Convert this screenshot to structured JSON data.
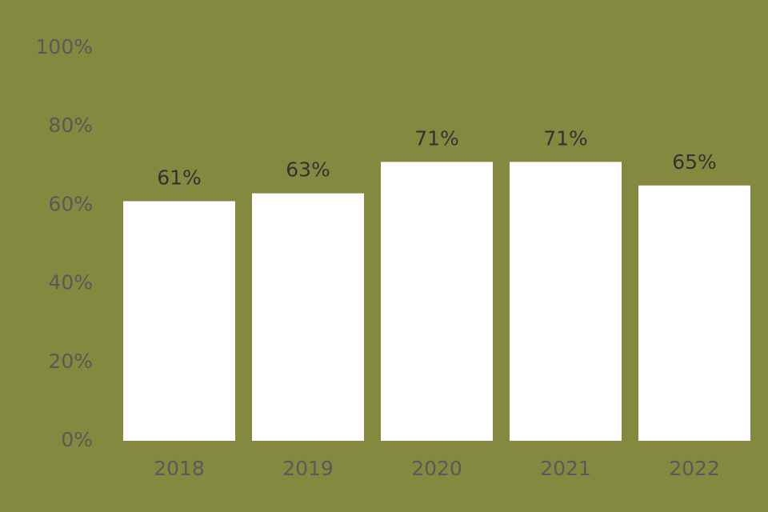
{
  "chart_data": {
    "type": "bar",
    "categories": [
      "2018",
      "2019",
      "2020",
      "2021",
      "2022"
    ],
    "values": [
      61,
      63,
      71,
      71,
      65
    ],
    "value_labels": [
      "61%",
      "63%",
      "71%",
      "71%",
      "65%"
    ],
    "color": "#ffffff",
    "ylim": [
      0,
      100
    ],
    "yticks": [
      {
        "value": 0,
        "label": "0%"
      },
      {
        "value": 20,
        "label": "20%"
      },
      {
        "value": 40,
        "label": "40%"
      },
      {
        "value": 60,
        "label": "60%"
      },
      {
        "value": 80,
        "label": "80%"
      },
      {
        "value": 100,
        "label": "100%"
      }
    ],
    "grid": false
  }
}
